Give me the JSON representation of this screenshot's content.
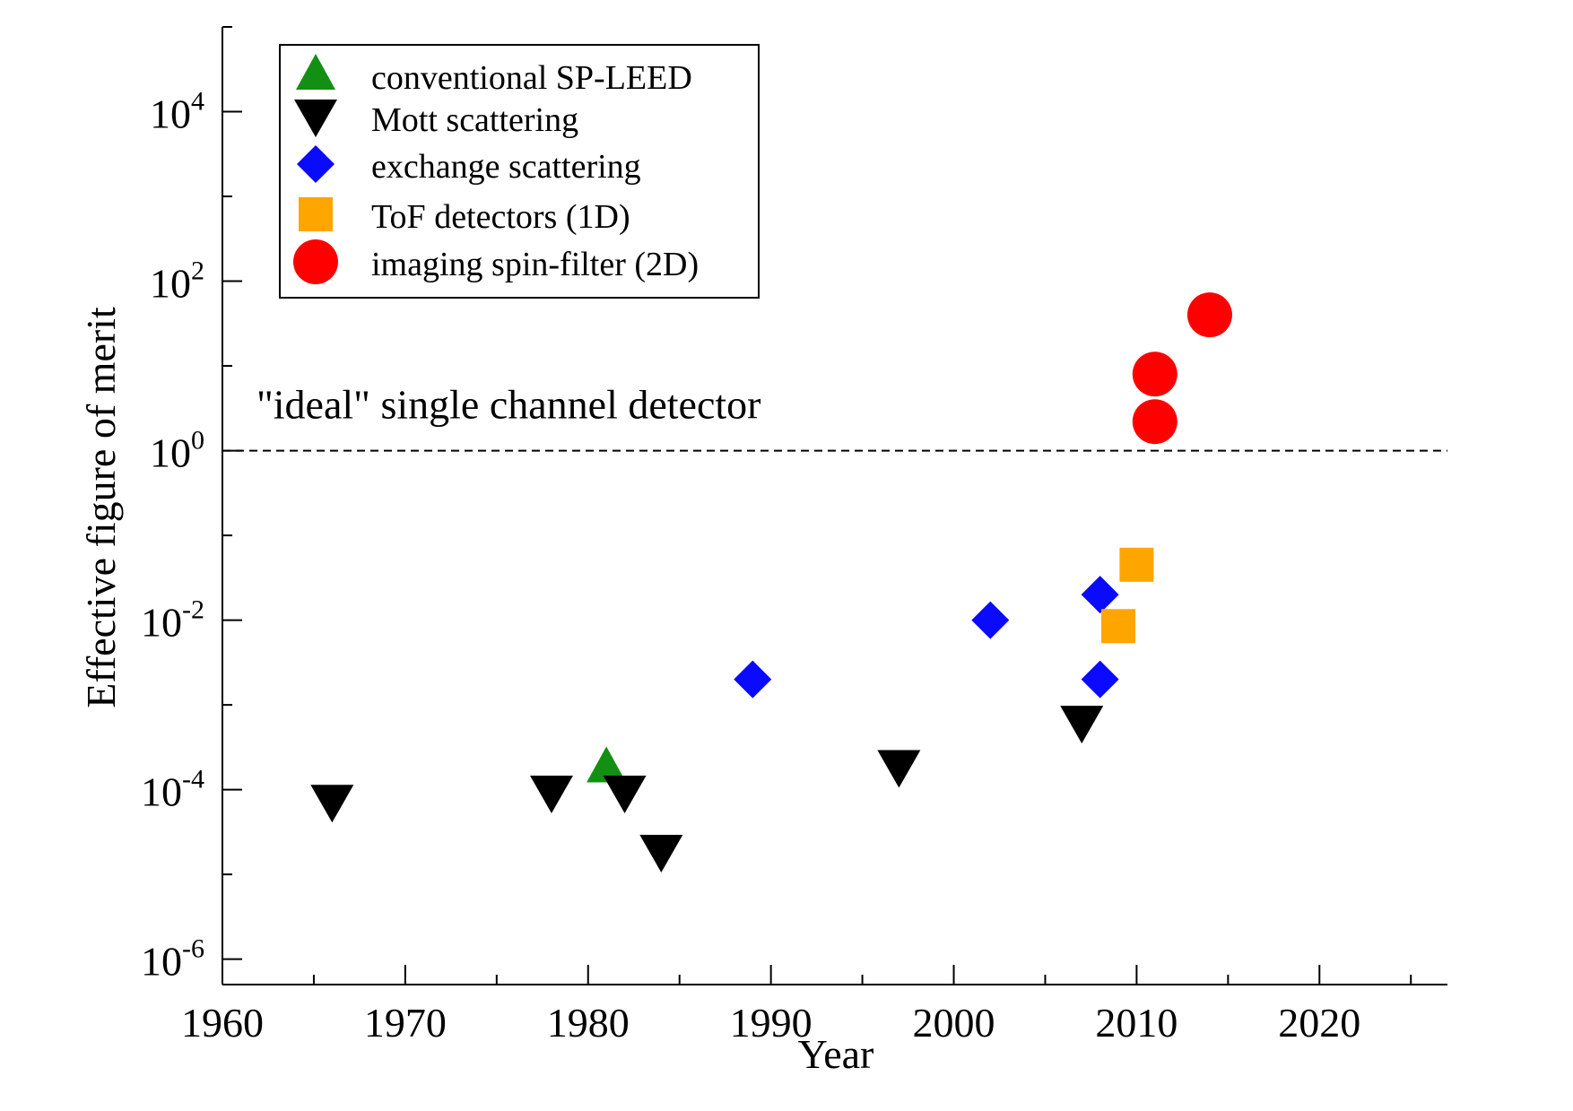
{
  "chart_data": {
    "type": "scatter",
    "title": "",
    "xlabel": "Year",
    "ylabel": "Effective figure of merit",
    "xlim": [
      1960,
      2027
    ],
    "ylim": [
      -6.3,
      5
    ],
    "y_scale": "log",
    "x_ticks": [
      1960,
      1970,
      1980,
      1990,
      2000,
      2010,
      2020
    ],
    "y_ticks": [
      {
        "base": "10",
        "exp": "-6",
        "value": -6
      },
      {
        "base": "10",
        "exp": "-4",
        "value": -4
      },
      {
        "base": "10",
        "exp": "-2",
        "value": -2
      },
      {
        "base": "10",
        "exp": "0",
        "value": 0
      },
      {
        "base": "10",
        "exp": "2",
        "value": 2
      },
      {
        "base": "10",
        "exp": "4",
        "value": 4
      }
    ],
    "legend_position": "top-left",
    "reference_line": {
      "y": 1,
      "label": "\"ideal\" single channel detector",
      "style": "dashed"
    },
    "series": [
      {
        "name": "conventional SP-LEED",
        "marker": "triangle-up",
        "color": "#138f13",
        "points": [
          {
            "x": 1981,
            "y": 0.00018
          }
        ]
      },
      {
        "name": "Mott scattering",
        "marker": "triangle-down",
        "color": "#000000",
        "points": [
          {
            "x": 1966,
            "y": 7e-05
          },
          {
            "x": 1978,
            "y": 9e-05
          },
          {
            "x": 1982,
            "y": 9e-05
          },
          {
            "x": 1984,
            "y": 1.8e-05
          },
          {
            "x": 1997,
            "y": 0.00018
          },
          {
            "x": 2007,
            "y": 0.0006
          }
        ]
      },
      {
        "name": "exchange scattering",
        "marker": "diamond",
        "color": "#0a0aff",
        "points": [
          {
            "x": 1989,
            "y": 0.002
          },
          {
            "x": 2002,
            "y": 0.01
          },
          {
            "x": 2008,
            "y": 0.02
          },
          {
            "x": 2008,
            "y": 0.002
          }
        ]
      },
      {
        "name": "ToF detectors (1D)",
        "marker": "square",
        "color": "#ffa500",
        "points": [
          {
            "x": 2010,
            "y": 0.045
          },
          {
            "x": 2009,
            "y": 0.0085
          }
        ]
      },
      {
        "name": "imaging spin-filter (2D)",
        "marker": "circle",
        "color": "#ff0000",
        "points": [
          {
            "x": 2011,
            "y": 8
          },
          {
            "x": 2011,
            "y": 2.2
          },
          {
            "x": 2014,
            "y": 40
          }
        ]
      }
    ]
  }
}
